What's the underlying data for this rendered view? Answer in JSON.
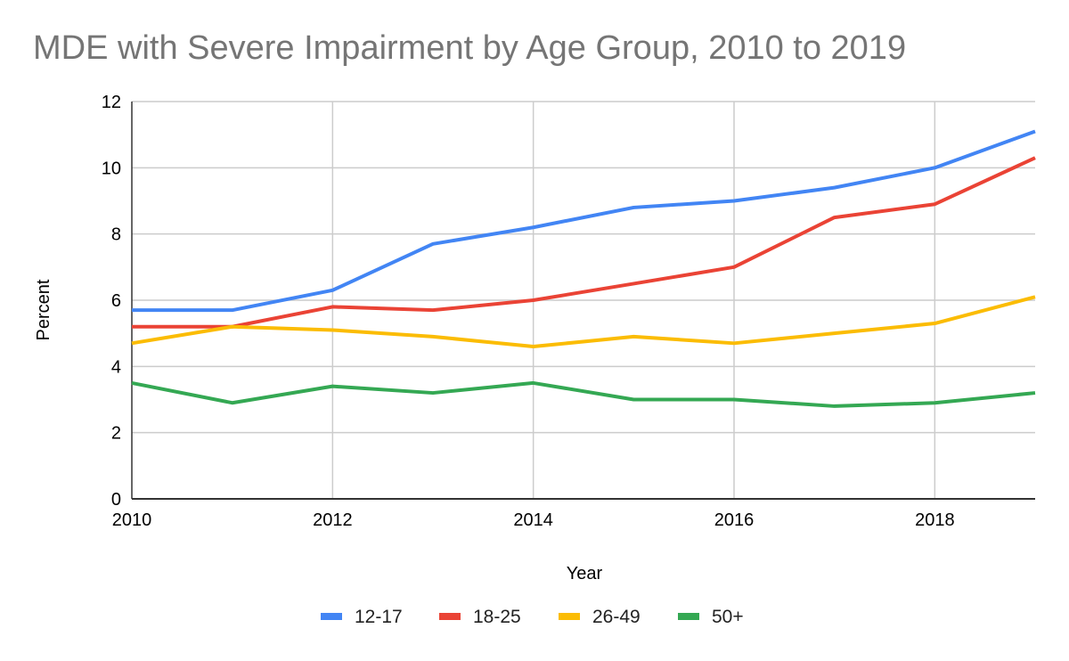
{
  "chart_data": {
    "type": "line",
    "title": "MDE with Severe Impairment by Age Group, 2010 to 2019",
    "xlabel": "Year",
    "ylabel": "Percent",
    "x": [
      2010,
      2011,
      2012,
      2013,
      2014,
      2015,
      2016,
      2017,
      2018,
      2019
    ],
    "xlim": [
      2010,
      2019
    ],
    "ylim": [
      0,
      12
    ],
    "xticks": [
      2010,
      2012,
      2014,
      2016,
      2018
    ],
    "yticks": [
      0,
      2,
      4,
      6,
      8,
      10,
      12
    ],
    "grid": true,
    "legend_position": "bottom",
    "series": [
      {
        "name": "12-17",
        "color": "#4285F4",
        "values": [
          5.7,
          5.7,
          6.3,
          7.7,
          8.2,
          8.8,
          9.0,
          9.4,
          10.0,
          11.1
        ]
      },
      {
        "name": "18-25",
        "color": "#EA4335",
        "values": [
          5.2,
          5.2,
          5.8,
          5.7,
          6.0,
          6.5,
          7.0,
          8.5,
          8.9,
          10.3
        ]
      },
      {
        "name": "26-49",
        "color": "#FBBC04",
        "values": [
          4.7,
          5.2,
          5.1,
          4.9,
          4.6,
          4.9,
          4.7,
          5.0,
          5.3,
          6.1
        ]
      },
      {
        "name": "50+",
        "color": "#34A853",
        "values": [
          3.5,
          2.9,
          3.4,
          3.2,
          3.5,
          3.0,
          3.0,
          2.8,
          2.9,
          3.2
        ]
      }
    ]
  }
}
